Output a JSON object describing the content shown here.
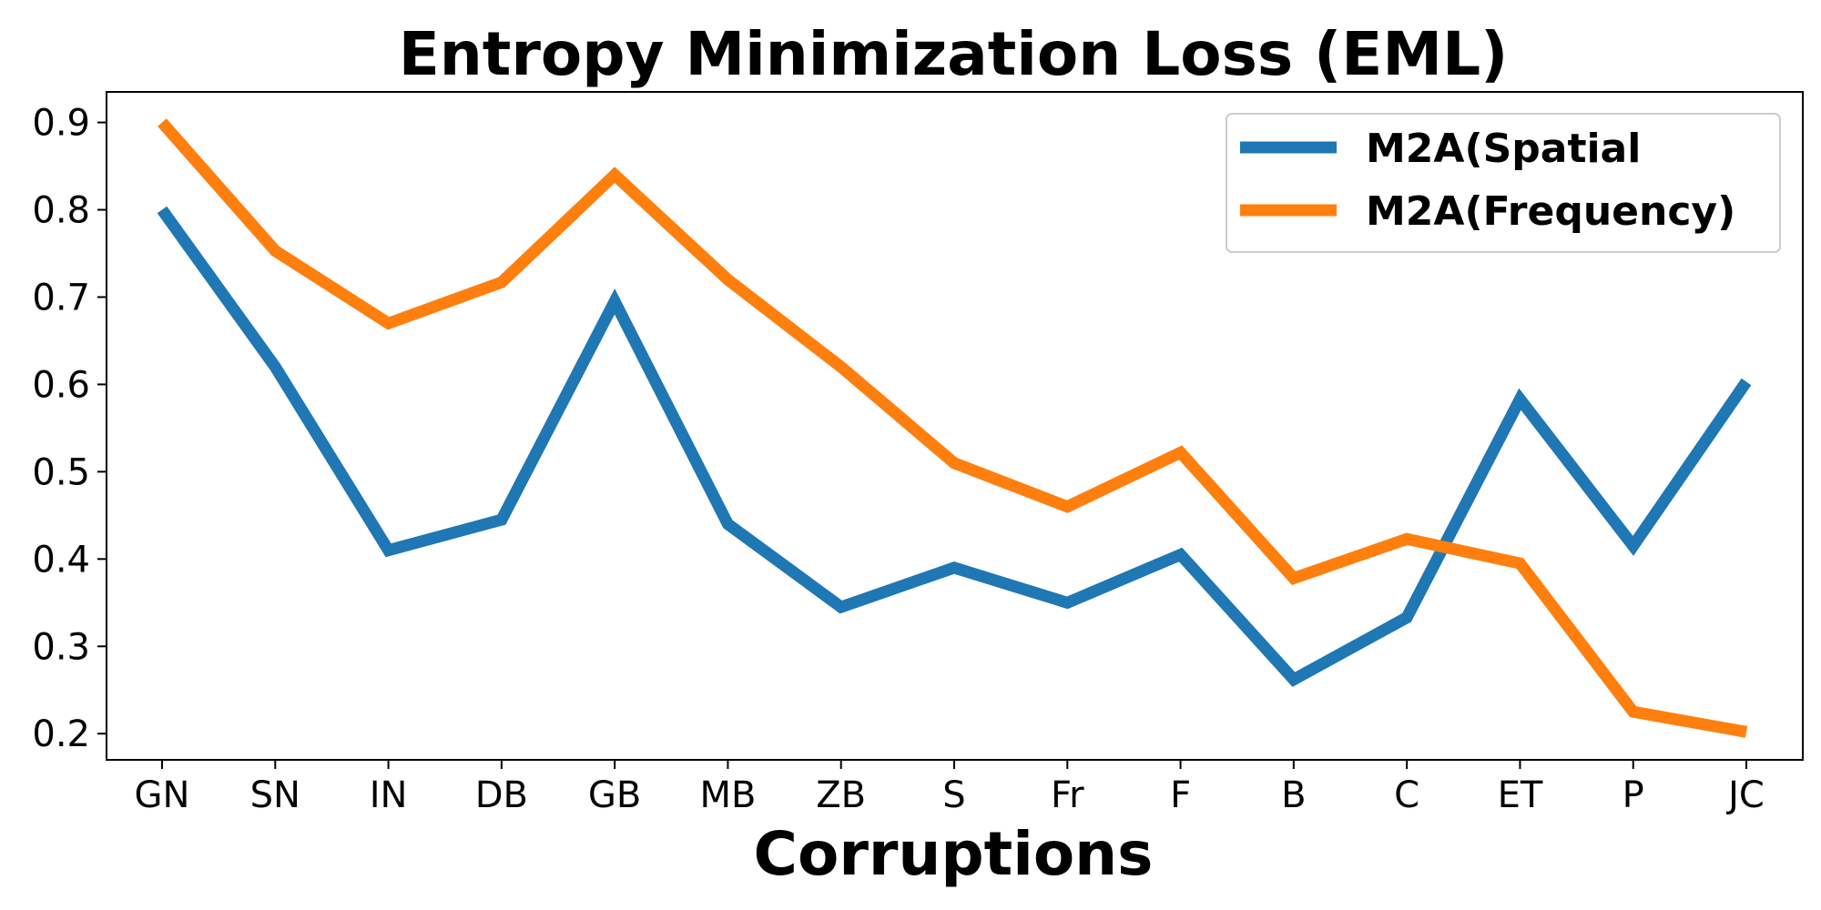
{
  "chart_data": {
    "type": "line",
    "title": "Entropy Minimization Loss (EML)",
    "xlabel": "Corruptions",
    "ylabel": "",
    "categories": [
      "GN",
      "SN",
      "IN",
      "DB",
      "GB",
      "MB",
      "ZB",
      "S",
      "Fr",
      "F",
      "B",
      "C",
      "ET",
      "P",
      "JC"
    ],
    "ylim": [
      0.17,
      0.935
    ],
    "yticks": [
      0.2,
      0.3,
      0.4,
      0.5,
      0.6,
      0.7,
      0.8,
      0.9
    ],
    "ytick_labels": [
      "0.2",
      "0.3",
      "0.4",
      "0.5",
      "0.6",
      "0.7",
      "0.8",
      "0.9"
    ],
    "grid": false,
    "legend_position": "top-right",
    "series": [
      {
        "name": "M2A(Spatial",
        "color": "#1f77b4",
        "values": [
          0.8,
          0.62,
          0.41,
          0.445,
          0.695,
          0.44,
          0.345,
          0.39,
          0.35,
          0.405,
          0.262,
          0.333,
          0.583,
          0.415,
          0.603
        ]
      },
      {
        "name": "M2A(Frequency)",
        "color": "#ff7f0e",
        "values": [
          0.9,
          0.753,
          0.67,
          0.717,
          0.84,
          0.72,
          0.62,
          0.51,
          0.46,
          0.522,
          0.378,
          0.423,
          0.395,
          0.225,
          0.202
        ]
      }
    ]
  }
}
